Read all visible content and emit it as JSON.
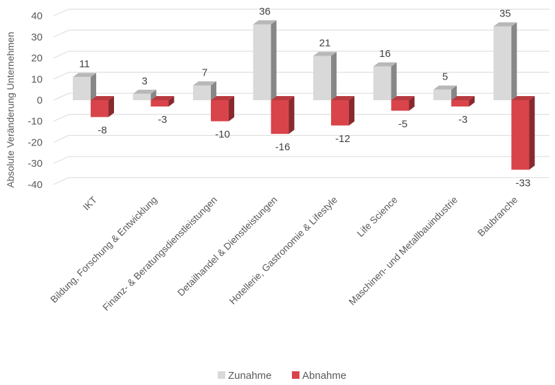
{
  "chart_data": {
    "type": "bar",
    "ylabel": "Absolute Veränderung Unternehmen",
    "ylim": [
      -40,
      40
    ],
    "yticks": [
      40,
      30,
      20,
      10,
      0,
      -10,
      -20,
      -30,
      -40
    ],
    "grid": true,
    "legend_position": "bottom",
    "categories": [
      "IKT",
      "Bildung, Forschung & Entwicklung",
      "Finanz- & Beratungsdienstleistungen",
      "Detailhandel & Dienstleistungen",
      "Hotellerie, Gastronomie & Lifestyle",
      "Life Science",
      "Maschinen- und Metallbauindustrie",
      "Baubranche"
    ],
    "series": [
      {
        "name": "Zunahme",
        "color": "#d9d9d9",
        "values": [
          11,
          3,
          7,
          36,
          21,
          16,
          5,
          35
        ]
      },
      {
        "name": "Abnahme",
        "color": "#d9444b",
        "values": [
          -8,
          -3,
          -10,
          -16,
          -12,
          -5,
          -3,
          -33
        ]
      }
    ]
  }
}
